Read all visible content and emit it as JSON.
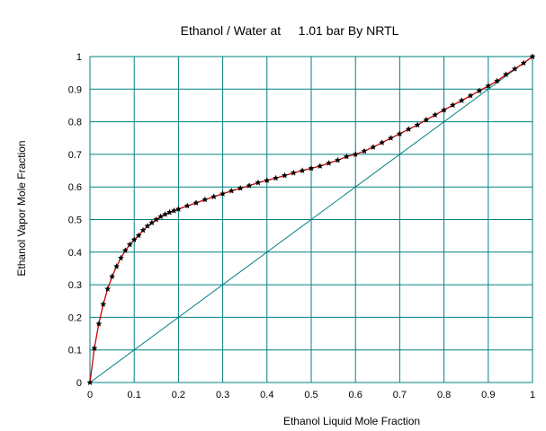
{
  "chart_data": {
    "type": "line",
    "title": "Ethanol / Water at     1.01 bar By NRTL",
    "xlabel": "Ethanol Liquid Mole Fraction",
    "ylabel": "Ethanol Vapor Mole Fraction",
    "xlim": [
      0,
      1
    ],
    "ylim": [
      0,
      1
    ],
    "grid": true,
    "x_ticks": [
      "0",
      "0.1",
      "0.2",
      "0.3",
      "0.4",
      "0.5",
      "0.6",
      "0.7",
      "0.8",
      "0.9",
      "1"
    ],
    "y_ticks": [
      "0",
      "0.1",
      "0.2",
      "0.3",
      "0.4",
      "0.5",
      "0.6",
      "0.7",
      "0.8",
      "0.9",
      "1"
    ],
    "colors": {
      "grid": "#008080",
      "diagonal": "#008080",
      "curve": "#cc0000",
      "markers": "#000000"
    },
    "series": [
      {
        "x": [
          0.0,
          0.01,
          0.02,
          0.03,
          0.04,
          0.05,
          0.06,
          0.07,
          0.08,
          0.09,
          0.1,
          0.11,
          0.12,
          0.13,
          0.14,
          0.15,
          0.16,
          0.17,
          0.18,
          0.19,
          0.2,
          0.22,
          0.24,
          0.26,
          0.28,
          0.3,
          0.32,
          0.34,
          0.36,
          0.38,
          0.4,
          0.42,
          0.44,
          0.46,
          0.48,
          0.5,
          0.52,
          0.54,
          0.56,
          0.58,
          0.6,
          0.62,
          0.64,
          0.66,
          0.68,
          0.7,
          0.72,
          0.74,
          0.76,
          0.78,
          0.8,
          0.82,
          0.84,
          0.86,
          0.88,
          0.9,
          0.92,
          0.94,
          0.96,
          0.98,
          1.0
        ],
        "y": [
          0.0,
          0.105,
          0.18,
          0.24,
          0.287,
          0.325,
          0.356,
          0.382,
          0.405,
          0.423,
          0.438,
          0.451,
          0.467,
          0.48,
          0.49,
          0.5,
          0.509,
          0.516,
          0.522,
          0.527,
          0.532,
          0.542,
          0.551,
          0.561,
          0.57,
          0.579,
          0.588,
          0.596,
          0.604,
          0.613,
          0.62,
          0.627,
          0.635,
          0.643,
          0.65,
          0.657,
          0.664,
          0.673,
          0.682,
          0.693,
          0.7,
          0.71,
          0.722,
          0.736,
          0.75,
          0.763,
          0.777,
          0.79,
          0.806,
          0.821,
          0.836,
          0.851,
          0.865,
          0.88,
          0.895,
          0.91,
          0.925,
          0.945,
          0.962,
          0.98,
          1.0
        ]
      }
    ]
  }
}
